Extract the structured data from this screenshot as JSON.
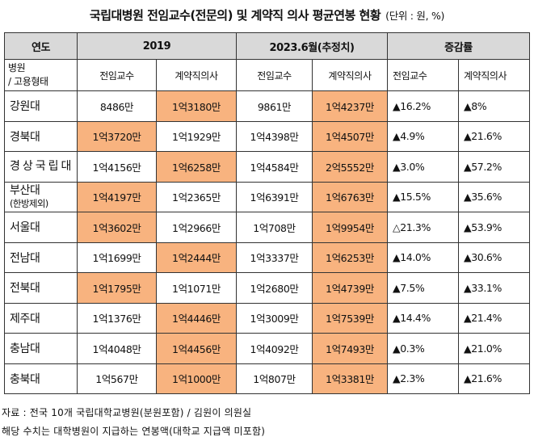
{
  "title": {
    "main": "국립대병원 전임교수(전문의) 및 계약직 의사 평균연봉 현황",
    "unit": "(단위 : 원, %)"
  },
  "header": {
    "year_label": "연도",
    "period_2019": "2019",
    "period_2023": "2023.6월(추정치)",
    "change_label": "증감률",
    "hospital_label_1": "병원",
    "hospital_label_2": "/ 고용형태",
    "prof_label": "전임교수",
    "contract_label": "계약직의사"
  },
  "rows": [
    {
      "name": "강원대",
      "sub": "",
      "p2019": "8486만",
      "c2019": "1억3180만",
      "p2023": "9861만",
      "c2023": "1억4237만",
      "pchg": "▲16.2%",
      "cchg": "▲8%",
      "hl": [
        "c2019",
        "c2023"
      ]
    },
    {
      "name": "경북대",
      "sub": "",
      "p2019": "1억3720만",
      "c2019": "1억1929만",
      "p2023": "1억4398만",
      "c2023": "1억4507만",
      "pchg": "▲4.9%",
      "cchg": "▲21.6%",
      "hl": [
        "p2019",
        "c2023"
      ]
    },
    {
      "name": "경상국립대",
      "sub": "",
      "p2019": "1억4156만",
      "c2019": "1억6258만",
      "p2023": "1억4584만",
      "c2023": "2억5552만",
      "pchg": "▲3.0%",
      "cchg": "▲57.2%",
      "hl": [
        "c2019",
        "c2023"
      ]
    },
    {
      "name": "부산대",
      "sub": "(한방제외)",
      "p2019": "1억4197만",
      "c2019": "1억2365만",
      "p2023": "1억6391만",
      "c2023": "1억6763만",
      "pchg": "▲15.5%",
      "cchg": "▲35.6%",
      "hl": [
        "p2019",
        "c2023"
      ]
    },
    {
      "name": "서울대",
      "sub": "",
      "p2019": "1억3602만",
      "c2019": "1억2966만",
      "p2023": "1억708만",
      "c2023": "1억9954만",
      "pchg": "△21.3%",
      "cchg": "▲53.9%",
      "hl": [
        "p2019",
        "c2023"
      ]
    },
    {
      "name": "전남대",
      "sub": "",
      "p2019": "1억1699만",
      "c2019": "1억2444만",
      "p2023": "1억3337만",
      "c2023": "1억6253만",
      "pchg": "▲14.0%",
      "cchg": "▲30.6%",
      "hl": [
        "c2019",
        "c2023"
      ]
    },
    {
      "name": "전북대",
      "sub": "",
      "p2019": "1억1795만",
      "c2019": "1억1071만",
      "p2023": "1억2680만",
      "c2023": "1억4739만",
      "pchg": "▲7.5%",
      "cchg": "▲33.1%",
      "hl": [
        "p2019",
        "c2023"
      ]
    },
    {
      "name": "제주대",
      "sub": "",
      "p2019": "1억1376만",
      "c2019": "1억4446만",
      "p2023": "1억3009만",
      "c2023": "1억7539만",
      "pchg": "▲14.4%",
      "cchg": "▲21.4%",
      "hl": [
        "c2019",
        "c2023"
      ]
    },
    {
      "name": "충남대",
      "sub": "",
      "p2019": "1억4048만",
      "c2019": "1억4456만",
      "p2023": "1억4092만",
      "c2023": "1억7493만",
      "pchg": "▲0.3%",
      "cchg": "▲21.0%",
      "hl": [
        "c2019",
        "c2023"
      ]
    },
    {
      "name": "충북대",
      "sub": "",
      "p2019": "1억567만",
      "c2019": "1억1000만",
      "p2023": "1억807만",
      "c2023": "1억3381만",
      "pchg": "▲2.3%",
      "cchg": "▲21.6%",
      "hl": [
        "c2019",
        "c2023"
      ]
    }
  ],
  "colors": {
    "highlight": "#f8b37f",
    "header_bg": "#d9d9d9"
  },
  "footnotes": {
    "source": "자료 : 전국 10개 국립대학교병원(분원포함) / 김원이 의원실",
    "note": "해당 수치는 대학병원이 지급하는 연봉액(대학교 지급액 미포함)"
  }
}
